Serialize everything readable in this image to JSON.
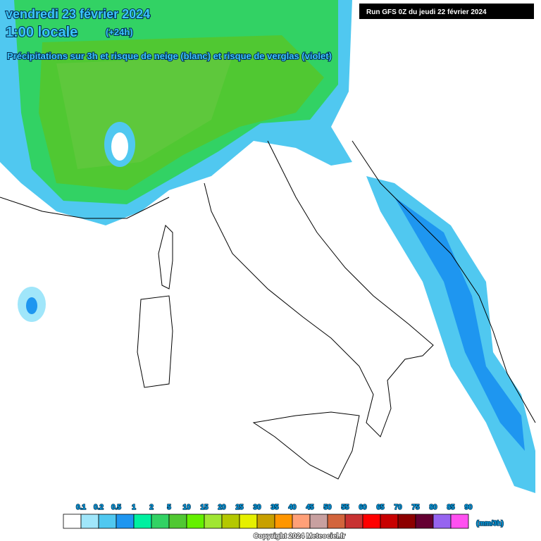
{
  "header": {
    "date": "vendredi 23 février 2024",
    "time": "1:00 locale",
    "lead": "(+24h)",
    "subtitle": "Précipitations sur 3h et risque de neige (blanc) et risque de verglas (violet)"
  },
  "run_label": "Run GFS 0Z du jeudi 22 février 2024",
  "legend": {
    "labels": [
      "0.1",
      "0.2",
      "0.5",
      "1",
      "2",
      "5",
      "10",
      "15",
      "20",
      "25",
      "30",
      "35",
      "40",
      "45",
      "50",
      "55",
      "60",
      "65",
      "70",
      "75",
      "80",
      "85",
      "90"
    ],
    "colors": [
      "#ffffff",
      "#a0e6fa",
      "#50c8f0",
      "#1e96f0",
      "#00f0a0",
      "#32d264",
      "#50c832",
      "#64f000",
      "#a0e632",
      "#b4c800",
      "#e6f000",
      "#c8a000",
      "#ff9600",
      "#ffa078",
      "#c8a0a0",
      "#d2643c",
      "#c83232",
      "#ff0000",
      "#c80000",
      "#8c0000",
      "#640032",
      "#9664f0",
      "#ff50f0"
    ],
    "unit": "(mm/3h)"
  },
  "copyright": "Copyright 2024 Meteociel.fr"
}
